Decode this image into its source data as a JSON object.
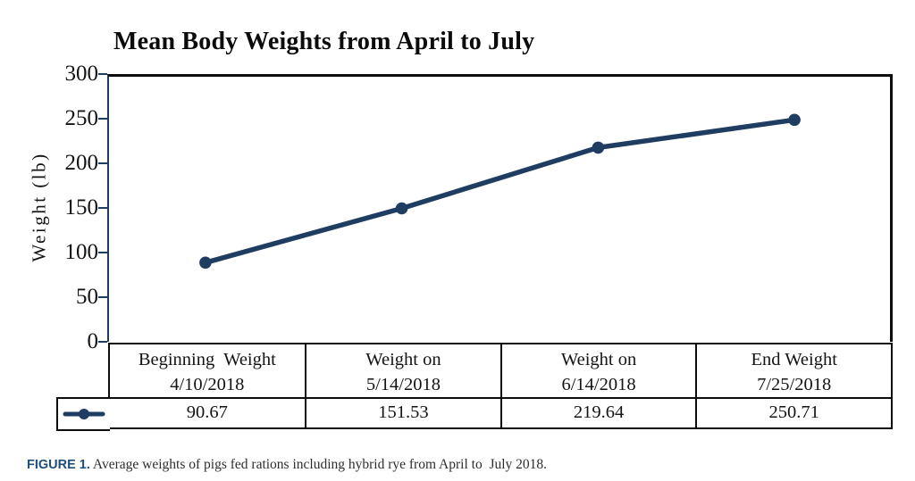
{
  "colors": {
    "series": "#1f3c61",
    "axis": "#1f3c61",
    "border": "#0d0d0d",
    "caption_label": "#1f4e79"
  },
  "chart_data": {
    "type": "line",
    "title": "Mean Body Weights from April to July",
    "xlabel": "",
    "ylabel": "Weight (lb)",
    "ylim": [
      0,
      300
    ],
    "yticks": [
      300,
      250,
      200,
      150,
      100,
      50,
      0
    ],
    "ytick_step": 50,
    "grid": false,
    "legend_position": "data-table-left",
    "legend_key_icon": "line-dot-marker",
    "categories": [
      "Beginning  Weight 4/10/2018",
      "Weight on 5/14/2018",
      "Weight on 6/14/2018",
      "End Weight 7/25/2018"
    ],
    "values": [
      90.67,
      151.53,
      219.64,
      250.71
    ],
    "marker": "circle",
    "line_color": "#1f3c61"
  },
  "table": {
    "headers": [
      {
        "line1": "Beginning  Weight",
        "line2": "4/10/2018"
      },
      {
        "line1": "Weight on",
        "line2": "5/14/2018"
      },
      {
        "line1": "Weight on",
        "line2": "6/14/2018"
      },
      {
        "line1": "End Weight",
        "line2": "7/25/2018"
      }
    ],
    "values": [
      "90.67",
      "151.53",
      "219.64",
      "250.71"
    ]
  },
  "caption": {
    "label": "FIGURE 1.",
    "text": " Average weights of pigs fed rations including hybrid rye from April to  July 2018."
  }
}
